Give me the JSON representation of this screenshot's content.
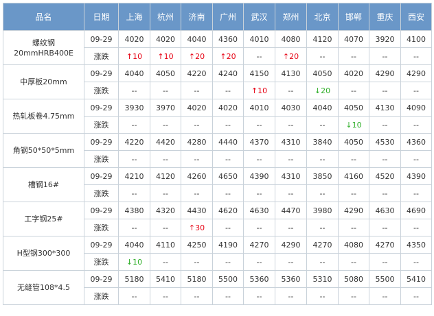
{
  "header": {
    "product": "品名",
    "date": "日期",
    "cities": [
      "上海",
      "杭州",
      "济南",
      "广州",
      "武汉",
      "郑州",
      "北京",
      "邯郸",
      "重庆",
      "西安"
    ]
  },
  "change_label": "涨跌",
  "colors": {
    "header_bg": "#6a97c8",
    "up": "#e60012",
    "down": "#2eae28",
    "border": "#c9d2da"
  },
  "products": [
    {
      "name": [
        "螺纹钢",
        "20mmHRB400E"
      ],
      "date": "09-29",
      "prices": [
        "4020",
        "4020",
        "4040",
        "4360",
        "4010",
        "4080",
        "4120",
        "4070",
        "3920",
        "4100"
      ],
      "changes": [
        "↑10",
        "↑10",
        "↑20",
        "↑20",
        "--",
        "↑20",
        "--",
        "--",
        "--",
        "--"
      ]
    },
    {
      "name": [
        "中厚板20mm"
      ],
      "date": "09-29",
      "prices": [
        "4040",
        "4050",
        "4220",
        "4240",
        "4150",
        "4130",
        "4050",
        "4020",
        "4290",
        "4290"
      ],
      "changes": [
        "--",
        "--",
        "--",
        "--",
        "↑10",
        "--",
        "↓20",
        "--",
        "--",
        "--"
      ]
    },
    {
      "name": [
        "热轧板卷4.75mm"
      ],
      "date": "09-29",
      "prices": [
        "3930",
        "3970",
        "4020",
        "4020",
        "4010",
        "4030",
        "4040",
        "4050",
        "4130",
        "4090"
      ],
      "changes": [
        "--",
        "--",
        "--",
        "--",
        "--",
        "--",
        "--",
        "↓10",
        "--",
        "--"
      ]
    },
    {
      "name": [
        "角钢50*50*5mm"
      ],
      "date": "09-29",
      "prices": [
        "4220",
        "4420",
        "4280",
        "4440",
        "4370",
        "4310",
        "3840",
        "4050",
        "4530",
        "4360"
      ],
      "changes": [
        "--",
        "--",
        "--",
        "--",
        "--",
        "--",
        "--",
        "--",
        "--",
        "--"
      ]
    },
    {
      "name": [
        "槽钢16#"
      ],
      "date": "09-29",
      "prices": [
        "4210",
        "4120",
        "4260",
        "4650",
        "4390",
        "4310",
        "3850",
        "4160",
        "4520",
        "4390"
      ],
      "changes": [
        "--",
        "--",
        "--",
        "--",
        "--",
        "--",
        "--",
        "--",
        "--",
        "--"
      ]
    },
    {
      "name": [
        "工字钢25#"
      ],
      "date": "09-29",
      "prices": [
        "4380",
        "4320",
        "4430",
        "4620",
        "4630",
        "4470",
        "3980",
        "4290",
        "4630",
        "4690"
      ],
      "changes": [
        "--",
        "--",
        "↑30",
        "--",
        "--",
        "--",
        "--",
        "--",
        "--",
        "--"
      ]
    },
    {
      "name": [
        "H型钢300*300"
      ],
      "date": "09-29",
      "prices": [
        "4040",
        "4110",
        "4250",
        "4190",
        "4270",
        "4290",
        "4270",
        "4080",
        "4270",
        "4350"
      ],
      "changes": [
        "↓10",
        "--",
        "--",
        "--",
        "--",
        "--",
        "--",
        "--",
        "--",
        "--"
      ]
    },
    {
      "name": [
        "无缝管108*4.5"
      ],
      "date": "09-29",
      "prices": [
        "5180",
        "5410",
        "5180",
        "5500",
        "5360",
        "5360",
        "5310",
        "5080",
        "5500",
        "5410"
      ],
      "changes": [
        "--",
        "--",
        "--",
        "--",
        "--",
        "--",
        "--",
        "--",
        "--",
        "--"
      ]
    }
  ]
}
